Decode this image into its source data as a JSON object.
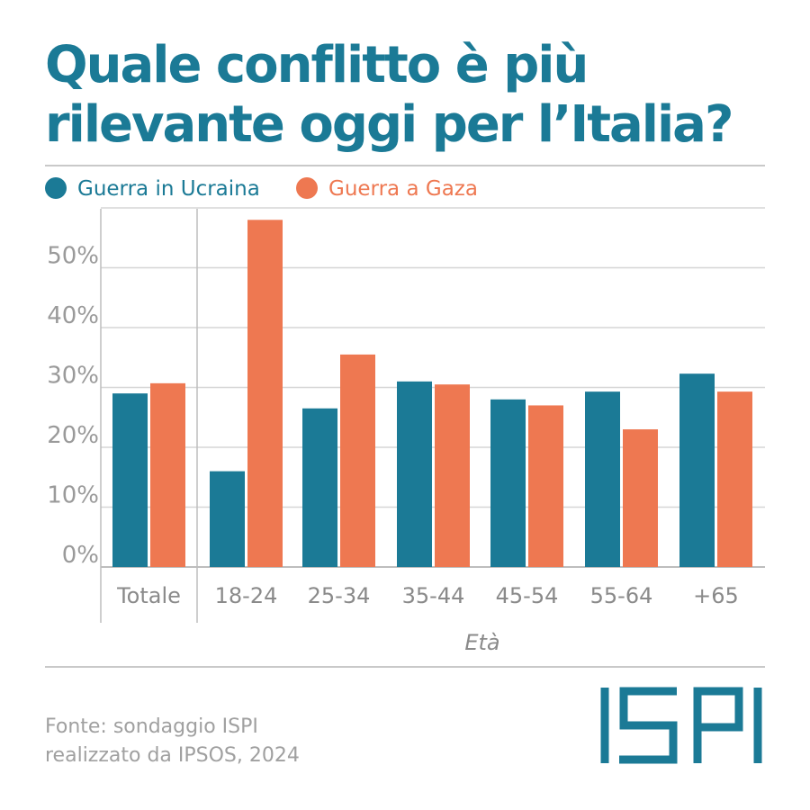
{
  "title_lines": [
    "Quale conflitto è più",
    "rilevante oggi per l’Italia?"
  ],
  "source_lines": [
    "Fonte: sondaggio ISPI",
    "realizzato da IPSOS, 2024"
  ],
  "logo_text": "ISPI",
  "colors": {
    "ukraine": "#1b7a96",
    "gaza": "#ee7851",
    "title": "#1b7a96",
    "grid": "#d6d6d6"
  },
  "chart_data": {
    "type": "bar",
    "title": "Quale conflitto è più rilevante oggi per l’Italia?",
    "xlabel": "Età",
    "ylabel": "",
    "categories": [
      "Totale",
      "18-24",
      "25-34",
      "35-44",
      "45-54",
      "55-64",
      "+65"
    ],
    "series": [
      {
        "name": "Guerra in Ucraina",
        "color": "#1b7a96",
        "values": [
          29,
          16,
          26.5,
          31,
          28,
          29.3,
          32.3
        ]
      },
      {
        "name": "Guerra a Gaza",
        "color": "#ee7851",
        "values": [
          30.7,
          58,
          35.5,
          30.5,
          27,
          23,
          29.3
        ]
      }
    ],
    "yticks": [
      "0%",
      "10%",
      "20%",
      "30%",
      "40%",
      "50%"
    ],
    "ylim": [
      0,
      60
    ],
    "grid": true,
    "legend": "top-left"
  }
}
